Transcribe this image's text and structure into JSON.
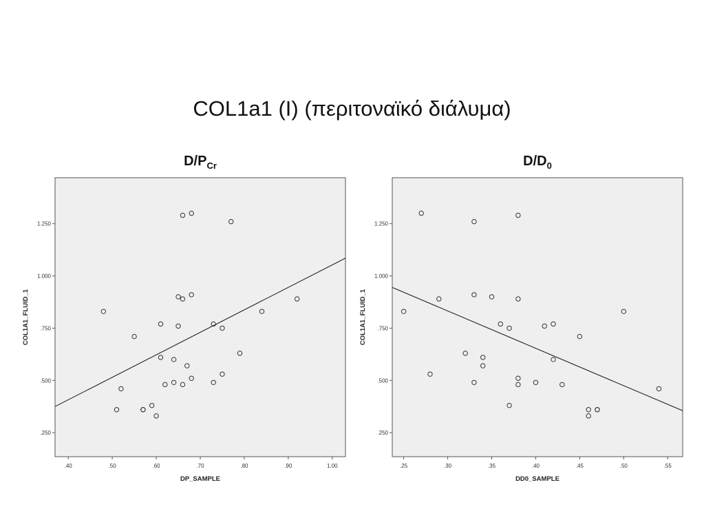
{
  "slide": {
    "title": "COL1a1 (I) (περιτοναϊκό διάλυμα)"
  },
  "colors": {
    "plot_background": "#efefef",
    "frame": "#555555",
    "points": "#333333",
    "fit_line": "#222222"
  },
  "chart_data": [
    {
      "type": "scatter",
      "title": "D/P",
      "title_subscript": "Cr",
      "xlabel": "DP_SAMPLE",
      "ylabel": "COL1A1_FLUID_1",
      "xlim": [
        0.37,
        1.03
      ],
      "ylim": [
        0.135,
        1.47
      ],
      "x_ticks": [
        0.4,
        0.5,
        0.6,
        0.7,
        0.8,
        0.9,
        1.0
      ],
      "x_tick_labels": [
        ".40",
        ".50",
        ".60",
        ".70",
        ".80",
        ".90",
        "1.00"
      ],
      "y_ticks": [
        0.25,
        0.5,
        0.75,
        1.0,
        1.25
      ],
      "y_tick_labels": [
        ".250",
        ".500",
        ".750",
        "1.000",
        "1.250"
      ],
      "grid": false,
      "points": [
        {
          "x": 0.48,
          "y": 0.83
        },
        {
          "x": 0.51,
          "y": 0.36
        },
        {
          "x": 0.52,
          "y": 0.46
        },
        {
          "x": 0.55,
          "y": 0.71
        },
        {
          "x": 0.57,
          "y": 0.36
        },
        {
          "x": 0.57,
          "y": 0.36
        },
        {
          "x": 0.59,
          "y": 0.38
        },
        {
          "x": 0.6,
          "y": 0.33
        },
        {
          "x": 0.61,
          "y": 0.77
        },
        {
          "x": 0.61,
          "y": 0.61
        },
        {
          "x": 0.62,
          "y": 0.48
        },
        {
          "x": 0.64,
          "y": 0.6
        },
        {
          "x": 0.64,
          "y": 0.49
        },
        {
          "x": 0.65,
          "y": 0.9
        },
        {
          "x": 0.65,
          "y": 0.76
        },
        {
          "x": 0.66,
          "y": 1.29
        },
        {
          "x": 0.66,
          "y": 0.89
        },
        {
          "x": 0.66,
          "y": 0.48
        },
        {
          "x": 0.67,
          "y": 0.57
        },
        {
          "x": 0.68,
          "y": 1.3
        },
        {
          "x": 0.68,
          "y": 0.91
        },
        {
          "x": 0.68,
          "y": 0.51
        },
        {
          "x": 0.73,
          "y": 0.77
        },
        {
          "x": 0.73,
          "y": 0.49
        },
        {
          "x": 0.75,
          "y": 0.75
        },
        {
          "x": 0.75,
          "y": 0.53
        },
        {
          "x": 0.77,
          "y": 1.26
        },
        {
          "x": 0.79,
          "y": 0.63
        },
        {
          "x": 0.84,
          "y": 0.83
        },
        {
          "x": 0.92,
          "y": 0.89
        }
      ],
      "fit_line": {
        "x": [
          0.37,
          1.03
        ],
        "y": [
          0.375,
          1.085
        ]
      }
    },
    {
      "type": "scatter",
      "title": "D/D",
      "title_subscript": "0",
      "xlabel": "DD0_SAMPLE",
      "ylabel": "COL1A1_FLUID_1",
      "xlim": [
        0.237,
        0.567
      ],
      "ylim": [
        0.135,
        1.47
      ],
      "x_ticks": [
        0.25,
        0.3,
        0.35,
        0.4,
        0.45,
        0.5,
        0.55
      ],
      "x_tick_labels": [
        ".25",
        ".30",
        ".35",
        ".40",
        ".45",
        ".50",
        ".55"
      ],
      "y_ticks": [
        0.25,
        0.5,
        0.75,
        1.0,
        1.25
      ],
      "y_tick_labels": [
        ".250",
        ".500",
        ".750",
        "1.000",
        "1.250"
      ],
      "grid": false,
      "points": [
        {
          "x": 0.25,
          "y": 0.83
        },
        {
          "x": 0.27,
          "y": 1.3
        },
        {
          "x": 0.28,
          "y": 0.53
        },
        {
          "x": 0.29,
          "y": 0.89
        },
        {
          "x": 0.32,
          "y": 0.63
        },
        {
          "x": 0.33,
          "y": 1.26
        },
        {
          "x": 0.33,
          "y": 0.91
        },
        {
          "x": 0.33,
          "y": 0.49
        },
        {
          "x": 0.34,
          "y": 0.61
        },
        {
          "x": 0.34,
          "y": 0.57
        },
        {
          "x": 0.35,
          "y": 0.9
        },
        {
          "x": 0.36,
          "y": 0.77
        },
        {
          "x": 0.37,
          "y": 0.75
        },
        {
          "x": 0.37,
          "y": 0.38
        },
        {
          "x": 0.38,
          "y": 1.29
        },
        {
          "x": 0.38,
          "y": 0.89
        },
        {
          "x": 0.38,
          "y": 0.51
        },
        {
          "x": 0.38,
          "y": 0.48
        },
        {
          "x": 0.4,
          "y": 0.49
        },
        {
          "x": 0.41,
          "y": 0.76
        },
        {
          "x": 0.42,
          "y": 0.77
        },
        {
          "x": 0.42,
          "y": 0.6
        },
        {
          "x": 0.43,
          "y": 0.48
        },
        {
          "x": 0.45,
          "y": 0.71
        },
        {
          "x": 0.46,
          "y": 0.36
        },
        {
          "x": 0.46,
          "y": 0.33
        },
        {
          "x": 0.47,
          "y": 0.36
        },
        {
          "x": 0.47,
          "y": 0.36
        },
        {
          "x": 0.5,
          "y": 0.83
        },
        {
          "x": 0.54,
          "y": 0.46
        }
      ],
      "fit_line": {
        "x": [
          0.237,
          0.567
        ],
        "y": [
          0.945,
          0.355
        ]
      }
    }
  ]
}
